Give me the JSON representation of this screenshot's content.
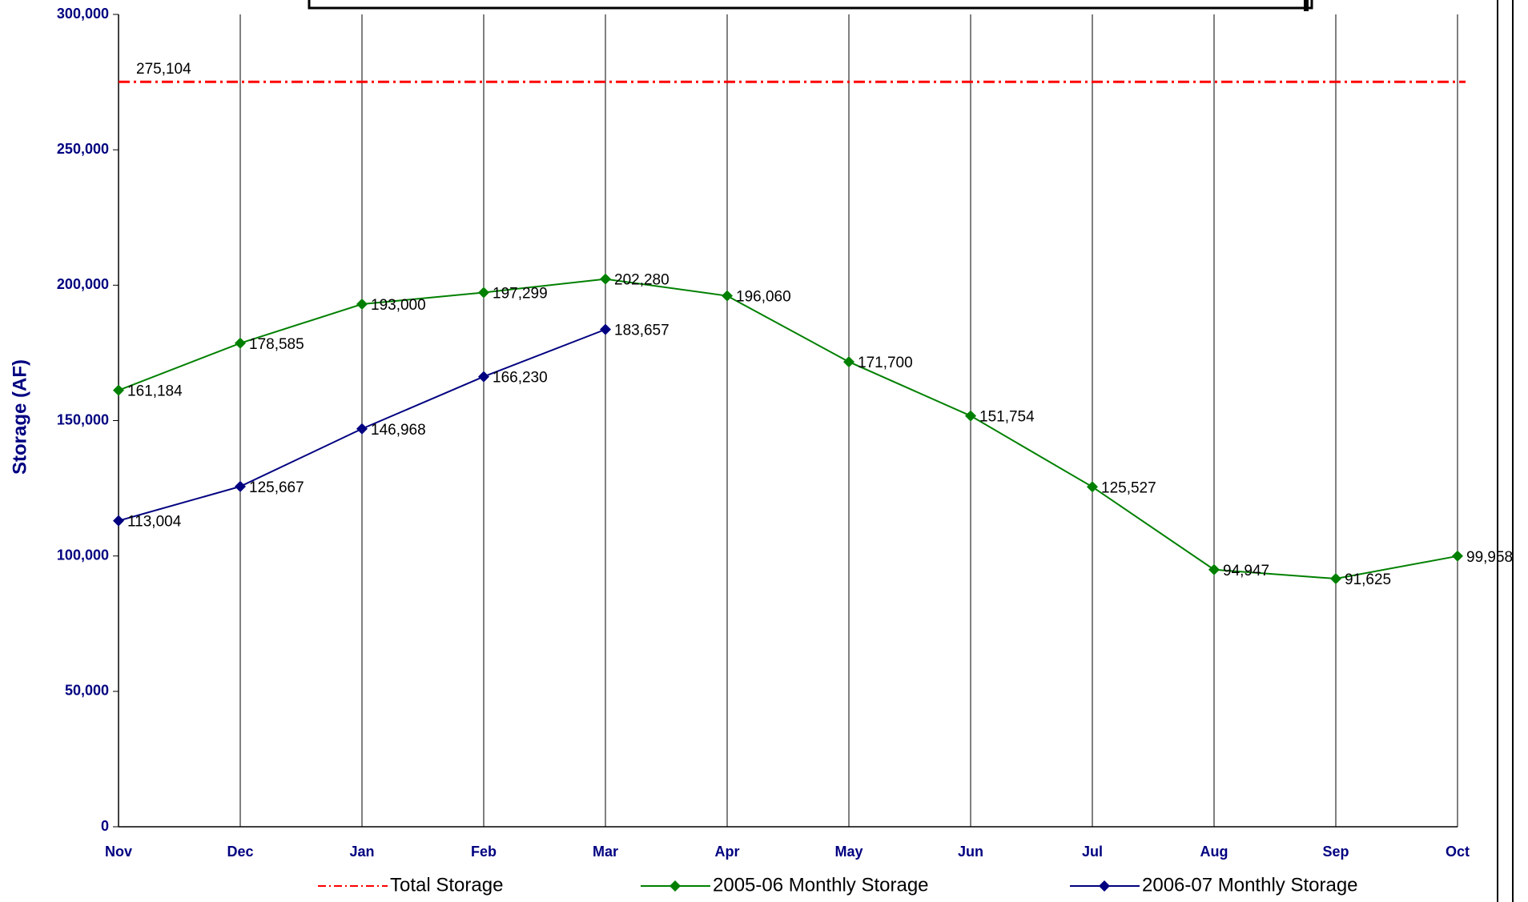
{
  "chart_data": {
    "type": "line",
    "y_label": "Storage (AF)",
    "categories": [
      "Nov",
      "Dec",
      "Jan",
      "Feb",
      "Mar",
      "Apr",
      "May",
      "Jun",
      "Jul",
      "Aug",
      "Sep",
      "Oct"
    ],
    "reference_line": {
      "name": "Total Storage",
      "value": 275104,
      "value_label": "275,104",
      "color": "#ff0000"
    },
    "series": [
      {
        "name": "2005-06 Monthly Storage",
        "color": "#008000",
        "values": [
          161184,
          178585,
          193000,
          197299,
          202280,
          196060,
          171700,
          151754,
          125527,
          94947,
          91625,
          99958
        ],
        "value_labels": [
          "161,184",
          "178,585",
          "193,000",
          "197,299",
          "202,280",
          "196,060",
          "171,700",
          "151,754",
          "125,527",
          "94,947",
          "91,625",
          "99,958"
        ]
      },
      {
        "name": "2006-07 Monthly Storage",
        "color": "#000080",
        "values": [
          113004,
          125667,
          146968,
          166230,
          183657,
          null,
          null,
          null,
          null,
          null,
          null,
          null
        ],
        "value_labels": [
          "113,004",
          "125,667",
          "146,968",
          "166,230",
          "183,657",
          null,
          null,
          null,
          null,
          null,
          null,
          null
        ]
      }
    ],
    "ylim": [
      0,
      300000
    ],
    "yticks": [
      0,
      {
        "value": 50000,
        "label": "50,000"
      },
      {
        "value": 100000,
        "label": "100,000"
      },
      {
        "value": 150000,
        "label": "150,000"
      },
      {
        "value": 200000,
        "label": "200,000"
      },
      {
        "value": 250000,
        "label": "250,000"
      },
      {
        "value": 300000,
        "label": "300,000"
      }
    ],
    "grid": true
  }
}
